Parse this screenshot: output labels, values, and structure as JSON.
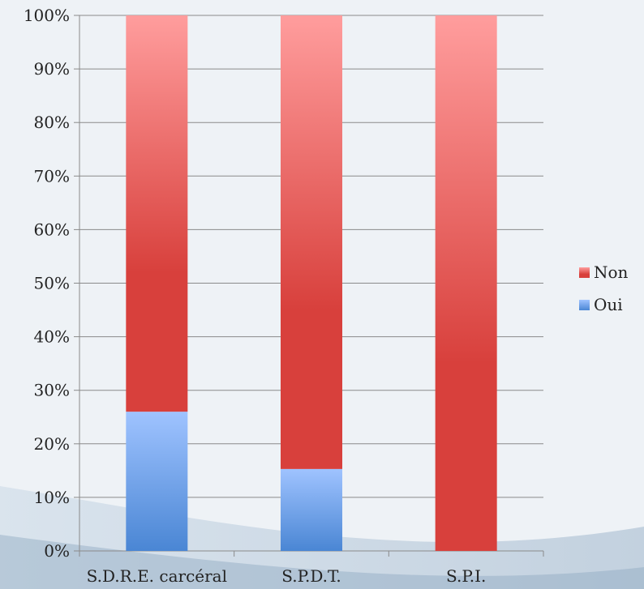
{
  "chart_data": {
    "type": "bar",
    "stacked": true,
    "percent_stacked": true,
    "categories": [
      "S.D.R.E. carcéral",
      "S.P.D.T.",
      "S.P.I."
    ],
    "series": [
      {
        "name": "Oui",
        "values": [
          26,
          15.3,
          0
        ],
        "color": "#4a86d4",
        "color_light": "#9fc3ff"
      },
      {
        "name": "Non",
        "values": [
          74,
          84.7,
          100
        ],
        "color": "#d8403c",
        "color_light": "#ff9d9d"
      }
    ],
    "y_ticks": [
      "0%",
      "10%",
      "20%",
      "30%",
      "40%",
      "50%",
      "60%",
      "70%",
      "80%",
      "90%",
      "100%"
    ],
    "ylim": [
      0,
      100
    ],
    "grid": true,
    "legend_position": "right",
    "legend_order": [
      "Non",
      "Oui"
    ]
  }
}
